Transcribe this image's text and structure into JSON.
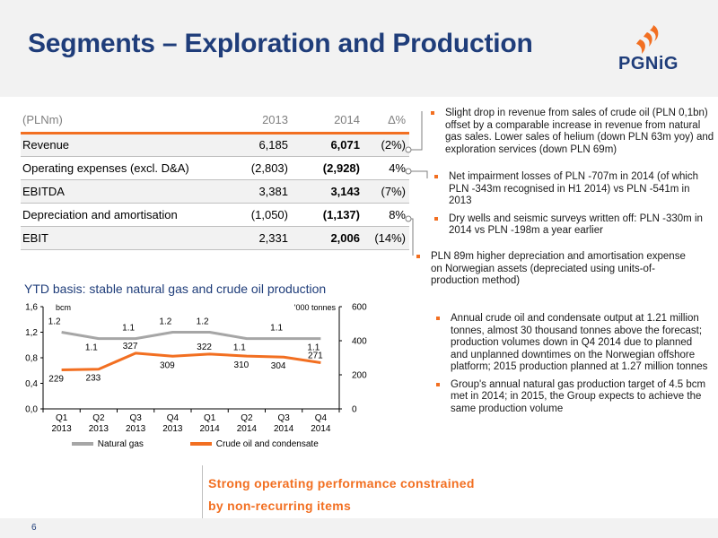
{
  "header": {
    "title": "Segments – Exploration and Production",
    "logo_text": "PGNiG"
  },
  "table": {
    "headers": [
      "(PLNm)",
      "2013",
      "2014",
      "∆%"
    ],
    "rows": [
      {
        "label": "Revenue",
        "y2013": "6,185",
        "y2014": "6,071",
        "delta": "(2%)"
      },
      {
        "label": "Operating expenses (excl. D&A)",
        "y2013": "(2,803)",
        "y2014": "(2,928)",
        "delta": "4%"
      },
      {
        "label": "EBITDA",
        "y2013": "3,381",
        "y2014": "3,143",
        "delta": "(7%)"
      },
      {
        "label": "Depreciation and amortisation",
        "y2013": "(1,050)",
        "y2014": "(1,137)",
        "delta": "8%"
      },
      {
        "label": "EBIT",
        "y2013": "2,331",
        "y2014": "2,006",
        "delta": "(14%)"
      }
    ]
  },
  "bullets": {
    "revenue": [
      "Slight drop in revenue from sales of crude oil (PLN 0,1bn) offset by a comparable increase in revenue from natural gas sales. Lower sales of helium (down PLN 63m yoy) and exploration services (down PLN 69m)"
    ],
    "opex": [
      "Net impairment losses of PLN -707m in 2014 (of which PLN -343m recognised in H1 2014) vs PLN -541m in 2013",
      "Dry wells and seismic surveys written off: PLN -330m in 2014 vs PLN -198m a year earlier"
    ],
    "depreciation": [
      "PLN 89m higher depreciation and amortisation expense on Norwegian assets (depreciated using units-of-production method)"
    ],
    "production": [
      "Annual crude oil and condensate output at 1.21 million tonnes, almost 30 thousand tonnes above the forecast; production volumes down in Q4 2014 due to planned and unplanned downtimes on the Norwegian offshore platform; 2015 production planned at 1.27 million tonnes",
      "Group's annual natural gas production target of 4.5 bcm met in 2014; in 2015, the Group expects to achieve the same production volume"
    ]
  },
  "chart_data": {
    "type": "line",
    "title": "YTD basis: stable natural gas and crude oil production",
    "categories": [
      "Q1\n2013",
      "Q2\n2013",
      "Q3\n2013",
      "Q4\n2013",
      "Q1\n2014",
      "Q2\n2014",
      "Q3\n2014",
      "Q4\n2014"
    ],
    "left_axis": {
      "label": "bcm",
      "ylim": [
        0,
        1.6
      ],
      "ticks": [
        "0,0",
        "0,4",
        "0,8",
        "1,2",
        "1,6"
      ]
    },
    "right_axis": {
      "label": "'000 tonnes",
      "ylim": [
        0,
        600
      ],
      "ticks": [
        "0",
        "200",
        "400",
        "600"
      ]
    },
    "series": [
      {
        "name": "Natural gas",
        "axis": "left",
        "color": "#a6a6a6",
        "values": [
          1.2,
          1.1,
          1.1,
          1.2,
          1.2,
          1.1,
          1.1,
          1.1
        ],
        "labels": [
          "1.2",
          "1.1",
          "1.1",
          "1.2",
          "1.2",
          "1.1",
          "1.1",
          "1.1"
        ]
      },
      {
        "name": "Crude oil and condensate",
        "axis": "right",
        "color": "#f26f21",
        "values": [
          229,
          233,
          327,
          309,
          322,
          310,
          304,
          271
        ],
        "labels": [
          "229",
          "233",
          "327",
          "309",
          "322",
          "310",
          "304",
          "271"
        ]
      }
    ],
    "grid": false,
    "legend": "bottom"
  },
  "footer": {
    "tagline_line1": "Strong operating performance constrained",
    "tagline_line2": "by non-recurring items",
    "page_number": "6"
  },
  "colors": {
    "navy": "#1f3d7a",
    "orange": "#f26f21",
    "gray": "#a6a6a6"
  }
}
